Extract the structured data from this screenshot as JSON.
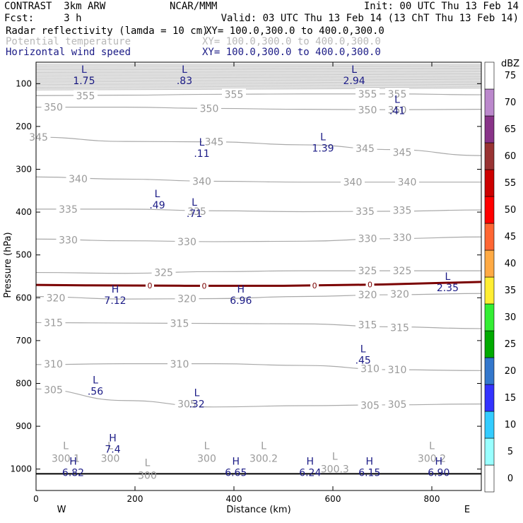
{
  "header": {
    "line1_left": "CONTRAST  3km ARW",
    "line1_mid": "NCAR/MMM",
    "line1_right": "Init: 00 UTC Thu 13 Feb 14",
    "line2_left": "Fcst:     3 h",
    "line2_right": "Valid: 03 UTC Thu 13 Feb 14 (13 ChT Thu 13 Feb 14)",
    "fields": [
      {
        "name": "Radar reflectivity (lamda = 10 cm)",
        "xy": "XY= 100.0,300.0 to 400.0,300.0",
        "color": "#000000"
      },
      {
        "name": "Potential temperature",
        "xy": "XY= 100.0,300.0 to 400.0,300.0",
        "color": "#b8b8b8"
      },
      {
        "name": "Horizontal wind speed",
        "xy": "XY= 100.0,300.0 to 400.0,300.0",
        "color": "#1b1b86"
      }
    ]
  },
  "chart_data": {
    "type": "cross-section contour",
    "xlabel": "Distance (km)",
    "ylabel": "Pressure (hPa)",
    "xlim": [
      0,
      900
    ],
    "ylim": [
      1050,
      50
    ],
    "x_ticks": [
      "0",
      "200",
      "400",
      "600",
      "800"
    ],
    "y_ticks": [
      "100",
      "200",
      "300",
      "400",
      "500",
      "600",
      "700",
      "800",
      "900",
      "1000"
    ],
    "x_end_labels": {
      "left": "W",
      "right": "E"
    },
    "theta_contours": [
      {
        "value": 355,
        "p": [
          128,
          127,
          125,
          124,
          124,
          126
        ]
      },
      {
        "value": 350,
        "p": [
          155,
          155,
          158,
          160,
          161,
          160
        ]
      },
      {
        "value": 345,
        "p": [
          225,
          235,
          236,
          243,
          254,
          268
        ]
      },
      {
        "value": 340,
        "p": [
          318,
          323,
          328,
          330,
          330,
          330
        ]
      },
      {
        "value": 335,
        "p": [
          393,
          393,
          397,
          399,
          398,
          395
        ]
      },
      {
        "value": 330,
        "p": [
          463,
          467,
          469,
          468,
          462,
          458
        ]
      },
      {
        "value": 325,
        "p": [
          541,
          543,
          539,
          537,
          537,
          537
        ]
      },
      {
        "value": 320,
        "p": [
          597,
          603,
          602,
          597,
          593,
          590
        ]
      },
      {
        "value": 315,
        "p": [
          658,
          659,
          660,
          661,
          668,
          672
        ]
      },
      {
        "value": 310,
        "p": [
          756,
          754,
          754,
          758,
          768,
          770
        ]
      },
      {
        "value": 305,
        "p": [
          813,
          840,
          855,
          852,
          850,
          848
        ]
      }
    ],
    "theta_labels": [
      {
        "text": "355",
        "x": 100,
        "p": 128
      },
      {
        "text": "355",
        "x": 400,
        "p": 125
      },
      {
        "text": "355",
        "x": 670,
        "p": 124
      },
      {
        "text": "355",
        "x": 730,
        "p": 124
      },
      {
        "text": "350",
        "x": 35,
        "p": 155
      },
      {
        "text": "350",
        "x": 350,
        "p": 158
      },
      {
        "text": "350",
        "x": 670,
        "p": 161
      },
      {
        "text": "350",
        "x": 730,
        "p": 161
      },
      {
        "text": "345",
        "x": 5,
        "p": 225
      },
      {
        "text": "345",
        "x": 360,
        "p": 236
      },
      {
        "text": "345",
        "x": 665,
        "p": 251
      },
      {
        "text": "345",
        "x": 740,
        "p": 260
      },
      {
        "text": "340",
        "x": 85,
        "p": 322
      },
      {
        "text": "340",
        "x": 335,
        "p": 328
      },
      {
        "text": "340",
        "x": 640,
        "p": 330
      },
      {
        "text": "340",
        "x": 750,
        "p": 330
      },
      {
        "text": "335",
        "x": 65,
        "p": 393
      },
      {
        "text": "335",
        "x": 325,
        "p": 398
      },
      {
        "text": "335",
        "x": 665,
        "p": 398
      },
      {
        "text": "335",
        "x": 740,
        "p": 396
      },
      {
        "text": "330",
        "x": 65,
        "p": 465
      },
      {
        "text": "330",
        "x": 305,
        "p": 469
      },
      {
        "text": "330",
        "x": 670,
        "p": 462
      },
      {
        "text": "330",
        "x": 740,
        "p": 459
      },
      {
        "text": "325",
        "x": 258,
        "p": 541
      },
      {
        "text": "325",
        "x": 670,
        "p": 537
      },
      {
        "text": "325",
        "x": 740,
        "p": 537
      },
      {
        "text": "320",
        "x": 40,
        "p": 600
      },
      {
        "text": "320",
        "x": 305,
        "p": 602
      },
      {
        "text": "320",
        "x": 670,
        "p": 593
      },
      {
        "text": "320",
        "x": 735,
        "p": 591
      },
      {
        "text": "315",
        "x": 35,
        "p": 658
      },
      {
        "text": "315",
        "x": 290,
        "p": 660
      },
      {
        "text": "315",
        "x": 670,
        "p": 663
      },
      {
        "text": "315",
        "x": 735,
        "p": 670
      },
      {
        "text": "310",
        "x": 35,
        "p": 755
      },
      {
        "text": "310",
        "x": 290,
        "p": 755
      },
      {
        "text": "310",
        "x": 675,
        "p": 765
      },
      {
        "text": "310",
        "x": 730,
        "p": 768
      },
      {
        "text": "305",
        "x": 35,
        "p": 815
      },
      {
        "text": "305",
        "x": 305,
        "p": 848
      },
      {
        "text": "305",
        "x": 675,
        "p": 851
      },
      {
        "text": "305",
        "x": 730,
        "p": 849
      }
    ],
    "theta_extrema": [
      {
        "mark": "L",
        "value": "300.1",
        "x": 60,
        "p": 960
      },
      {
        "mark": "L",
        "value": "300",
        "x": 150,
        "p": 960
      },
      {
        "mark": "L",
        "value": "300",
        "x": 345,
        "p": 960
      },
      {
        "mark": "L",
        "value": "300.2",
        "x": 460,
        "p": 960
      },
      {
        "mark": "L",
        "value": "300",
        "x": 225,
        "p": 1000
      },
      {
        "mark": "L",
        "value": "300.3",
        "x": 604,
        "p": 985
      },
      {
        "mark": "L",
        "value": "300.2",
        "x": 800,
        "p": 960
      }
    ],
    "wind_extrema": [
      {
        "mark": "L",
        "value": "1.75",
        "x": 97,
        "p": 75
      },
      {
        "mark": "L",
        "value": ".83",
        "x": 300,
        "p": 75
      },
      {
        "mark": "L",
        "value": "2.94",
        "x": 643,
        "p": 75
      },
      {
        "mark": "L",
        "value": ".41",
        "x": 730,
        "p": 145
      },
      {
        "mark": "L",
        "value": "1.39",
        "x": 580,
        "p": 232
      },
      {
        "mark": "L",
        "value": ".11",
        "x": 335,
        "p": 245
      },
      {
        "mark": "L",
        "value": ".49",
        "x": 245,
        "p": 365
      },
      {
        "mark": "L",
        "value": ".71",
        "x": 320,
        "p": 385
      },
      {
        "mark": "L",
        "value": "2.35",
        "x": 832,
        "p": 558
      },
      {
        "mark": "H",
        "value": "7.12",
        "x": 160,
        "p": 588
      },
      {
        "mark": "H",
        "value": "6.96",
        "x": 414,
        "p": 588
      },
      {
        "mark": "L",
        "value": ".45",
        "x": 661,
        "p": 727
      },
      {
        "mark": "L",
        "value": ".56",
        "x": 120,
        "p": 800
      },
      {
        "mark": "L",
        "value": ".32",
        "x": 325,
        "p": 830
      },
      {
        "mark": "H",
        "value": "7.4",
        "x": 155,
        "p": 935
      },
      {
        "mark": "H",
        "value": "6.82",
        "x": 75,
        "p": 990
      },
      {
        "mark": "H",
        "value": "6.65",
        "x": 404,
        "p": 990
      },
      {
        "mark": "H",
        "value": "6.24",
        "x": 554,
        "p": 990
      },
      {
        "mark": "H",
        "value": "6.15",
        "x": 674,
        "p": 990
      },
      {
        "mark": "H",
        "value": "6.90",
        "x": 814,
        "p": 990
      }
    ],
    "zero_wind_contour": {
      "label": "0",
      "color": "#7a0000",
      "x": [
        0,
        100,
        300,
        500,
        700,
        900
      ],
      "p": [
        570,
        571,
        572,
        572,
        569,
        563
      ],
      "label_x": [
        230,
        340,
        563,
        675
      ]
    },
    "ground_pressure": 1011,
    "colorbar": {
      "unit": "dBZ",
      "levels": [
        "0",
        "5",
        "10",
        "15",
        "20",
        "25",
        "30",
        "35",
        "40",
        "45",
        "50",
        "55",
        "60",
        "65",
        "70",
        "75"
      ],
      "colors": [
        "#ffffff",
        "#99ffff",
        "#33ccff",
        "#3333ff",
        "#3377cc",
        "#00aa00",
        "#33ee33",
        "#ffee33",
        "#ffaa44",
        "#ff6633",
        "#ff0000",
        "#cc0000",
        "#993333",
        "#883388",
        "#bb88cc",
        "#ffffff"
      ]
    }
  }
}
